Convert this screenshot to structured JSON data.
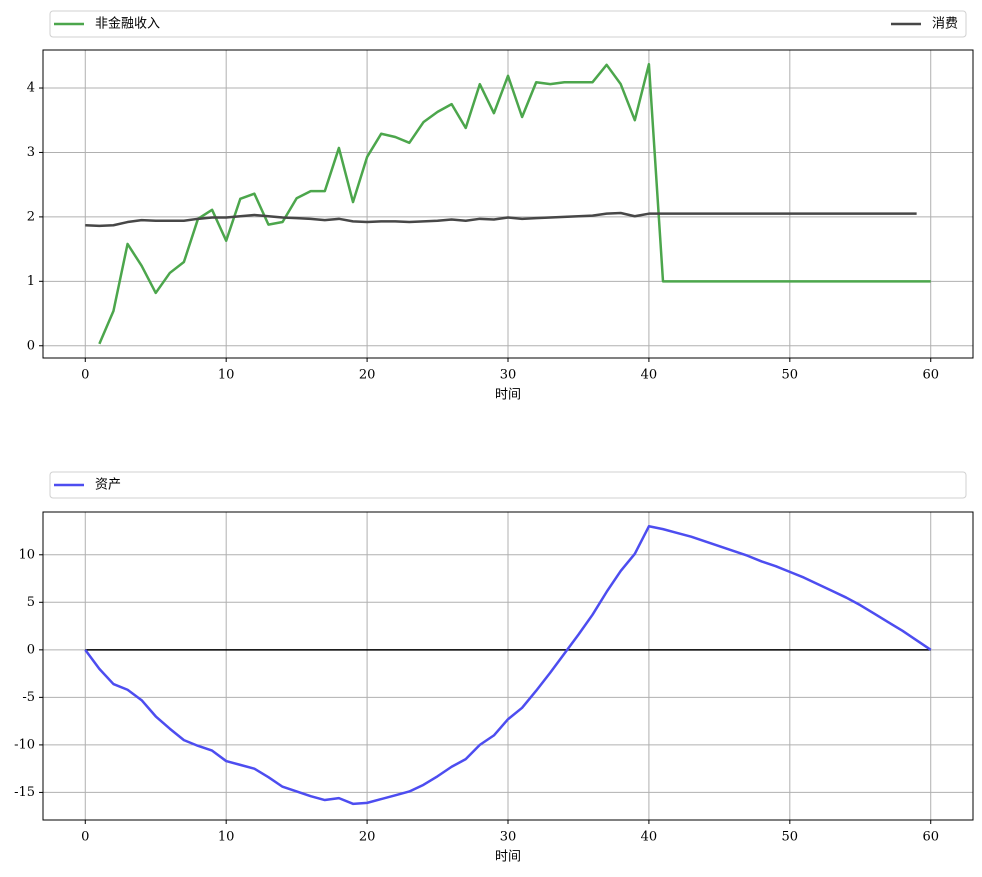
{
  "chart_data": [
    {
      "type": "line",
      "x": [
        0,
        1,
        2,
        3,
        4,
        5,
        6,
        7,
        8,
        9,
        10,
        11,
        12,
        13,
        14,
        15,
        16,
        17,
        18,
        19,
        20,
        21,
        22,
        23,
        24,
        25,
        26,
        27,
        28,
        29,
        30,
        31,
        32,
        33,
        34,
        35,
        36,
        37,
        38,
        39,
        40,
        41,
        42,
        43,
        44,
        45,
        46,
        47,
        48,
        49,
        50,
        51,
        52,
        53,
        54,
        55,
        56,
        57,
        58,
        59,
        60
      ],
      "series": [
        {
          "name": "非金融收入",
          "color": "#4ca64c",
          "values": [
            null,
            0.03,
            0.54,
            1.58,
            1.24,
            0.82,
            1.13,
            1.3,
            1.97,
            2.11,
            1.63,
            2.28,
            2.36,
            1.88,
            1.92,
            2.29,
            2.4,
            2.4,
            3.07,
            2.23,
            2.93,
            3.29,
            3.24,
            3.15,
            3.47,
            3.63,
            3.75,
            3.38,
            4.06,
            3.61,
            4.19,
            3.55,
            4.09,
            4.06,
            4.09,
            4.09,
            4.09,
            4.36,
            4.06,
            3.5,
            4.37,
            1.0,
            1.0,
            1.0,
            1.0,
            1.0,
            1.0,
            1.0,
            1.0,
            1.0,
            1.0,
            1.0,
            1.0,
            1.0,
            1.0,
            1.0,
            1.0,
            1.0,
            1.0,
            1.0,
            1.0
          ]
        },
        {
          "name": "消费",
          "color": "#474747",
          "values": [
            1.87,
            1.86,
            1.87,
            1.92,
            1.95,
            1.94,
            1.94,
            1.94,
            1.97,
            1.99,
            1.99,
            2.01,
            2.03,
            2.01,
            1.99,
            1.98,
            1.97,
            1.95,
            1.97,
            1.93,
            1.92,
            1.93,
            1.93,
            1.92,
            1.93,
            1.94,
            1.96,
            1.94,
            1.97,
            1.96,
            1.99,
            1.97,
            1.98,
            1.99,
            2.0,
            2.01,
            2.02,
            2.05,
            2.06,
            2.01,
            2.05,
            2.05,
            2.05,
            2.05,
            2.05,
            2.05,
            2.05,
            2.05,
            2.05,
            2.05,
            2.05,
            2.05,
            2.05,
            2.05,
            2.05,
            2.05,
            2.05,
            2.05,
            2.05,
            2.05,
            null
          ]
        }
      ],
      "xlabel": "时间",
      "xlim": [
        -3,
        63
      ],
      "xticks": [
        0,
        10,
        20,
        30,
        40,
        50,
        60
      ],
      "ylim": [
        -0.19,
        4.59
      ],
      "yticks": [
        0,
        1,
        2,
        3,
        4
      ],
      "grid": true,
      "legend": "above"
    },
    {
      "type": "line",
      "x": [
        0,
        1,
        2,
        3,
        4,
        5,
        6,
        7,
        8,
        9,
        10,
        11,
        12,
        13,
        14,
        15,
        16,
        17,
        18,
        19,
        20,
        21,
        22,
        23,
        24,
        25,
        26,
        27,
        28,
        29,
        30,
        31,
        32,
        33,
        34,
        35,
        36,
        37,
        38,
        39,
        40,
        41,
        42,
        43,
        44,
        45,
        46,
        47,
        48,
        49,
        50,
        51,
        52,
        53,
        54,
        55,
        56,
        57,
        58,
        59,
        60
      ],
      "series": [
        {
          "name": "资产",
          "color": "#4d4df0",
          "values": [
            0,
            -2.0,
            -3.6,
            -4.2,
            -5.3,
            -7.0,
            -8.3,
            -9.5,
            -10.1,
            -10.6,
            -11.7,
            -12.1,
            -12.5,
            -13.4,
            -14.4,
            -14.9,
            -15.4,
            -15.8,
            -15.6,
            -16.2,
            -16.1,
            -15.7,
            -15.3,
            -14.9,
            -14.2,
            -13.3,
            -12.3,
            -11.5,
            -10.0,
            -9.0,
            -7.3,
            -6.1,
            -4.3,
            -2.4,
            -0.4,
            1.6,
            3.7,
            6.1,
            8.3,
            10.1,
            13.0,
            12.7,
            12.3,
            11.9,
            11.4,
            10.9,
            10.4,
            9.9,
            9.3,
            8.8,
            8.2,
            7.6,
            6.9,
            6.2,
            5.5,
            4.7,
            3.8,
            2.9,
            2.0,
            1.0,
            0.0
          ]
        }
      ],
      "hline": {
        "y": 0,
        "x": [
          0,
          60
        ],
        "color": "#000000"
      },
      "xlabel": "时间",
      "xlim": [
        -3,
        63
      ],
      "xticks": [
        0,
        10,
        20,
        30,
        40,
        50,
        60
      ],
      "ylim": [
        -17.9,
        14.5
      ],
      "yticks": [
        -15,
        -10,
        -5,
        0,
        5,
        10
      ],
      "grid": true,
      "legend": "above"
    }
  ]
}
